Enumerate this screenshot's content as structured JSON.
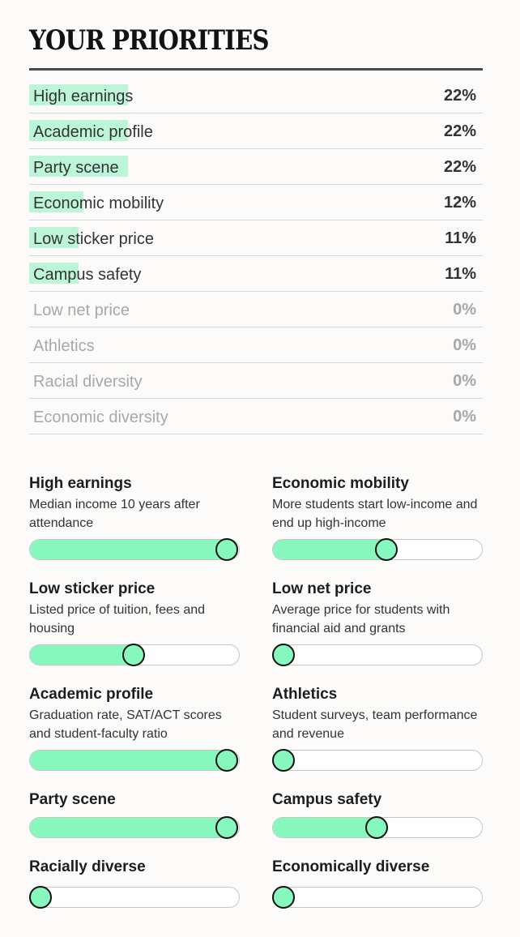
{
  "title": "YOUR PRIORITIES",
  "ranking": [
    {
      "label": "High earnings",
      "percent": "22%",
      "value": 22
    },
    {
      "label": "Academic profile",
      "percent": "22%",
      "value": 22
    },
    {
      "label": "Party scene",
      "percent": "22%",
      "value": 22
    },
    {
      "label": "Economic mobility",
      "percent": "12%",
      "value": 12
    },
    {
      "label": "Low sticker price",
      "percent": "11%",
      "value": 11
    },
    {
      "label": "Campus safety",
      "percent": "11%",
      "value": 11
    },
    {
      "label": "Low net price",
      "percent": "0%",
      "value": 0
    },
    {
      "label": "Athletics",
      "percent": "0%",
      "value": 0
    },
    {
      "label": "Racial diversity",
      "percent": "0%",
      "value": 0
    },
    {
      "label": "Economic diversity",
      "percent": "0%",
      "value": 0
    }
  ],
  "sliders": [
    {
      "title": "High earnings",
      "description": "Median income 10 years after attendance",
      "level": 1.0
    },
    {
      "title": "Economic mobility",
      "description": "More students start low-income and end up high-income",
      "level": 0.55
    },
    {
      "title": "Low sticker price",
      "description": "Listed price of tuition, fees and housing",
      "level": 0.5
    },
    {
      "title": "Low net price",
      "description": "Average price for students with financial aid and grants",
      "level": 0.0
    },
    {
      "title": "Academic profile",
      "description": "Graduation rate, SAT/ACT scores and student-faculty ratio",
      "level": 1.0
    },
    {
      "title": "Athletics",
      "description": "Student surveys, team performance and revenue",
      "level": 0.0
    },
    {
      "title": "Party scene",
      "description": "",
      "level": 1.0
    },
    {
      "title": "Campus safety",
      "description": "",
      "level": 0.5
    },
    {
      "title": "Racially diverse",
      "description": "",
      "level": 0.0
    },
    {
      "title": "Economically diverse",
      "description": "",
      "level": 0.0
    }
  ],
  "colors": {
    "fill": "#86f7bd",
    "bar": "#bdf5d9"
  }
}
